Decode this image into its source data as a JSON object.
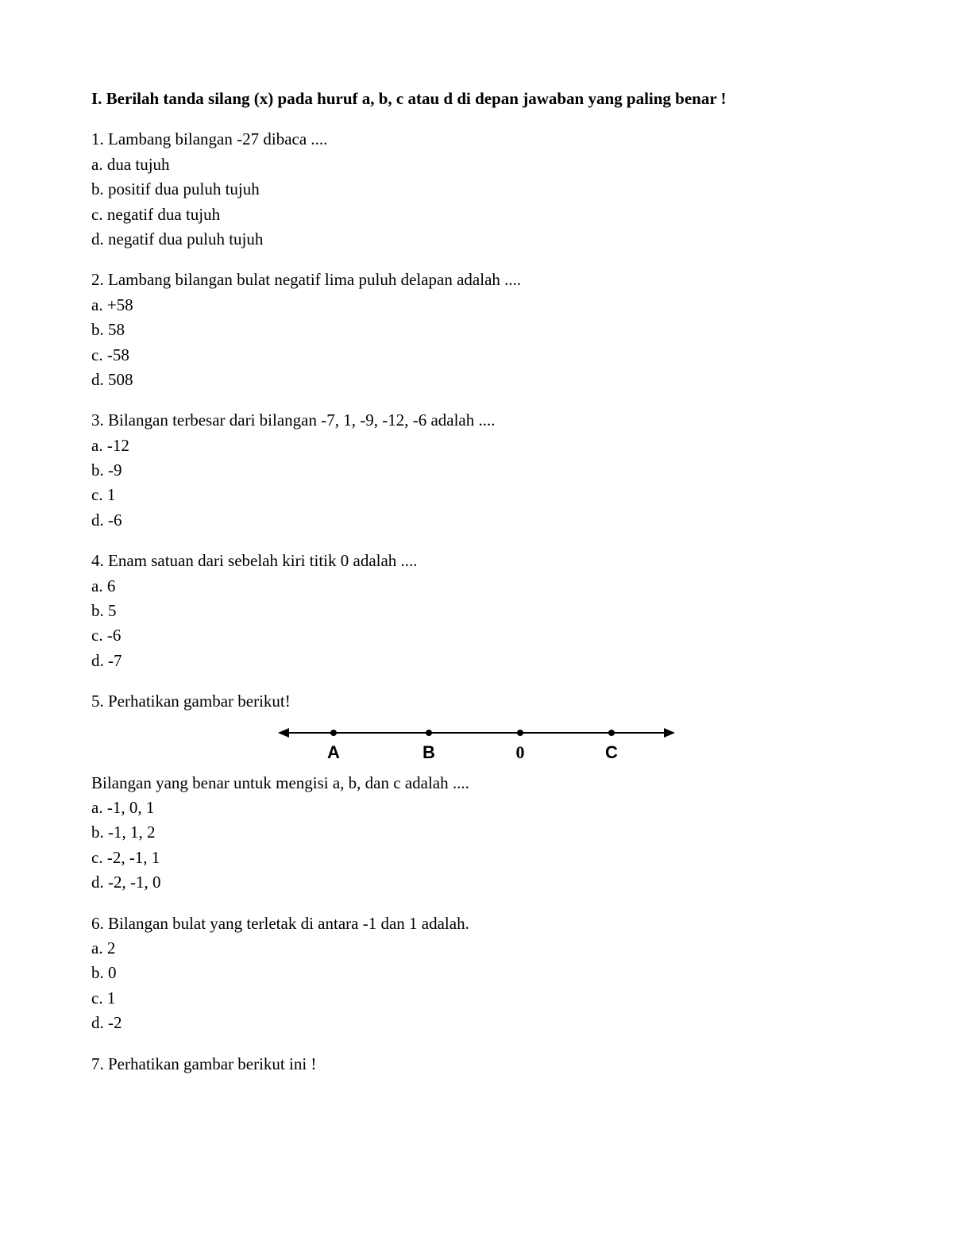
{
  "instruction": "I. Berilah tanda silang (x) pada huruf a, b, c atau d di depan jawaban yang paling benar !",
  "questions": [
    {
      "number": "1",
      "text": "Lambang bilangan -27 dibaca ....",
      "options": [
        {
          "letter": "a",
          "text": "dua tujuh"
        },
        {
          "letter": "b",
          "text": "positif dua puluh tujuh"
        },
        {
          "letter": "c",
          "text": "negatif dua tujuh"
        },
        {
          "letter": "d",
          "text": "negatif dua puluh tujuh"
        }
      ]
    },
    {
      "number": "2",
      "text": "Lambang bilangan bulat negatif lima puluh delapan adalah ....",
      "options": [
        {
          "letter": "a",
          "text": "+58"
        },
        {
          "letter": "b",
          "text": "58"
        },
        {
          "letter": "c",
          "text": "-58"
        },
        {
          "letter": "d",
          "text": "508"
        }
      ]
    },
    {
      "number": "3",
      "text": "Bilangan terbesar dari bilangan -7, 1, -9, -12, -6 adalah ....",
      "options": [
        {
          "letter": "a",
          "text": "-12"
        },
        {
          "letter": "b",
          "text": "-9"
        },
        {
          "letter": "c",
          "text": "1"
        },
        {
          "letter": "d",
          "text": "-6"
        }
      ]
    },
    {
      "number": "4",
      "text": "Enam satuan dari sebelah kiri titik 0 adalah ....",
      "options": [
        {
          "letter": "a",
          "text": "6"
        },
        {
          "letter": "b",
          "text": "5"
        },
        {
          "letter": "c",
          "text": "-6"
        },
        {
          "letter": "d",
          "text": "-7"
        }
      ]
    },
    {
      "number": "5",
      "text": "Perhatikan gambar berikut!",
      "has_numberline": true,
      "numberline": {
        "points": [
          {
            "label": "A",
            "pos_percent": 14
          },
          {
            "label": "B",
            "pos_percent": 38
          },
          {
            "label": "0",
            "pos_percent": 61,
            "is_zero": true
          },
          {
            "label": "C",
            "pos_percent": 84
          }
        ],
        "line_color": "#000000"
      },
      "followup": "Bilangan yang benar untuk mengisi a, b, dan c adalah ....",
      "options": [
        {
          "letter": "a",
          "text": "-1, 0, 1"
        },
        {
          "letter": "b",
          "text": "-1, 1, 2"
        },
        {
          "letter": "c",
          "text": "-2, -1, 1"
        },
        {
          "letter": "d",
          "text": "-2, -1, 0"
        }
      ]
    },
    {
      "number": "6",
      "text": "Bilangan bulat yang terletak di antara -1 dan 1 adalah.",
      "options": [
        {
          "letter": "a",
          "text": "2"
        },
        {
          "letter": "b",
          "text": "0"
        },
        {
          "letter": "c",
          "text": "1"
        },
        {
          "letter": "d",
          "text": "-2"
        }
      ]
    },
    {
      "number": "7",
      "text": "Perhatikan gambar berikut ini !",
      "options": []
    }
  ]
}
